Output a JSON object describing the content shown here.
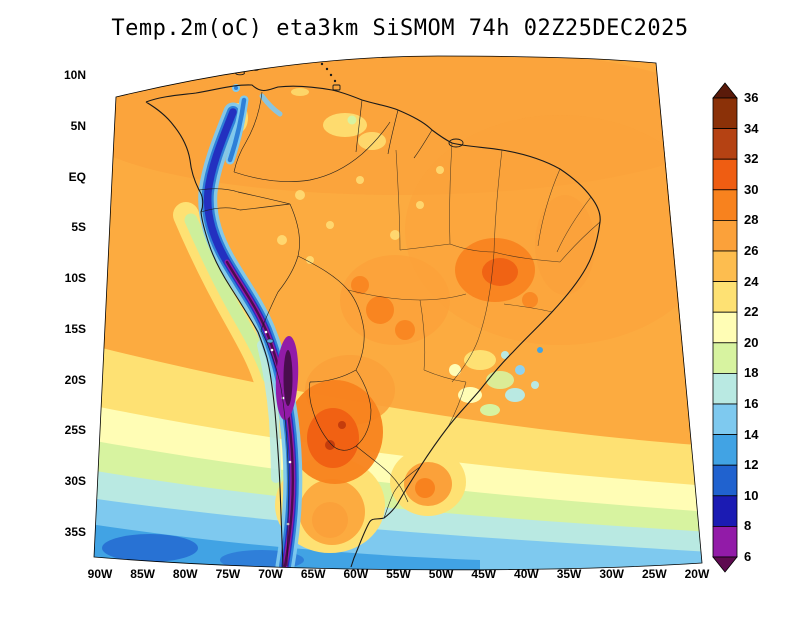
{
  "title": "Temp.2m(oC) eta3km SiSMOM 74h 02Z25DEC2025",
  "axes": {
    "lat_labels": [
      "10N",
      "5N",
      "EQ",
      "5S",
      "10S",
      "15S",
      "20S",
      "25S",
      "30S",
      "35S"
    ],
    "lon_labels": [
      "90W",
      "85W",
      "80W",
      "75W",
      "70W",
      "65W",
      "60W",
      "55W",
      "50W",
      "45W",
      "40W",
      "35W",
      "30W",
      "25W",
      "20W"
    ]
  },
  "colorbar": {
    "tick_labels": [
      "36",
      "34",
      "32",
      "30",
      "28",
      "26",
      "24",
      "22",
      "20",
      "18",
      "16",
      "14",
      "12",
      "10",
      "8",
      "6"
    ],
    "colors_top_to_bottom": [
      "#5a1a0a",
      "#8b3108",
      "#b54213",
      "#ef5d12",
      "#f8821e",
      "#fba13a",
      "#fdbd4f",
      "#fee173",
      "#fffdb5",
      "#d7f3a0",
      "#b9e9e2",
      "#7ec9ef",
      "#41a3e4",
      "#2062cf",
      "#1b1bb3",
      "#921ba8",
      "#5e0a50"
    ]
  },
  "chart_data": {
    "type": "heatmap",
    "title": "Temp.2m(oC) eta3km SiSMOM 74h 02Z25DEC2025",
    "variable": "Temp.2m (oC)",
    "model": "eta3km SiSMOM",
    "forecast_hour": "74h",
    "valid_time": "02Z25DEC2025",
    "lon_ticks": [
      "90W",
      "85W",
      "80W",
      "75W",
      "70W",
      "65W",
      "60W",
      "55W",
      "50W",
      "45W",
      "40W",
      "35W",
      "30W",
      "25W",
      "20W"
    ],
    "lat_ticks": [
      "10N",
      "5N",
      "EQ",
      "5S",
      "10S",
      "15S",
      "20S",
      "25S",
      "30S",
      "35S"
    ],
    "levels_c": [
      6,
      8,
      10,
      12,
      14,
      16,
      18,
      20,
      22,
      24,
      26,
      28,
      30,
      32,
      34,
      36
    ],
    "palette_warm_to_cold": [
      "#5a1a0a",
      "#8b3108",
      "#b54213",
      "#ef5d12",
      "#f8821e",
      "#fba13a",
      "#fdbd4f",
      "#fee173",
      "#fffdb5",
      "#d7f3a0",
      "#b9e9e2",
      "#7ec9ef",
      "#41a3e4",
      "#2062cf",
      "#1b1bb3",
      "#921ba8",
      "#5e0a50"
    ],
    "features": [
      "Warm 26-30C air over the Amazon basin and tropical Atlantic",
      "Hot pockets 30-34C over northern Argentina, Paraguay and interior NE Brazil",
      "Cold Andes cordillera strip below 8C running from Colombia to southern Chile",
      "Cool coastal tongue 18-22C along the Peru/Chile Pacific coast",
      "Ocean temperatures decreasing southward to 14-18C near 35S"
    ]
  }
}
